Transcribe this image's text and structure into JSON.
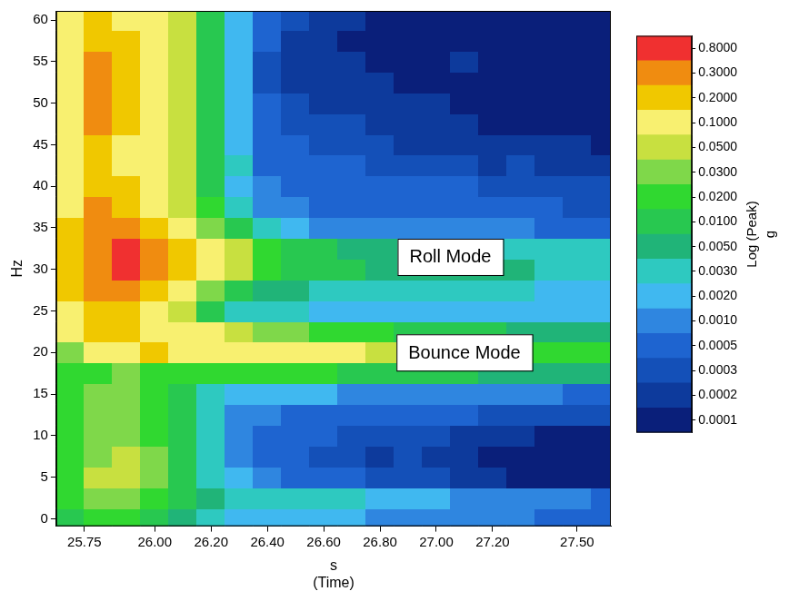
{
  "chart_data": {
    "type": "heatmap",
    "xlabel": [
      "s",
      "(Time)"
    ],
    "ylabel": "Hz",
    "xlim": [
      25.65,
      27.62
    ],
    "ylim": [
      -0.9,
      61.1
    ],
    "xticks": [
      25.75,
      {
        "value": 26,
        "label": "26.00"
      },
      {
        "value": 26.2,
        "label": "26.20"
      },
      {
        "value": 26.4,
        "label": "26.40"
      },
      {
        "value": 26.6,
        "label": "26.60"
      },
      {
        "value": 26.8,
        "label": "26.80"
      },
      {
        "value": 27,
        "label": "27.00"
      },
      {
        "value": 27.2,
        "label": "27.20"
      },
      {
        "value": 27.5,
        "label": "27.50"
      }
    ],
    "yticks": [
      0,
      5,
      10,
      15,
      20,
      25,
      30,
      35,
      40,
      45,
      50,
      55,
      60
    ],
    "grid": false,
    "x": [
      25.7,
      25.8,
      25.9,
      26.0,
      26.1,
      26.2,
      26.3,
      26.4,
      26.5,
      26.6,
      26.7,
      26.8,
      26.9,
      27.0,
      27.1,
      27.2,
      27.3,
      27.4,
      27.5,
      27.6
    ],
    "y": [
      0,
      2.5,
      5,
      7.5,
      10,
      12.5,
      15,
      17.5,
      20,
      22.5,
      25,
      27.5,
      30,
      32.5,
      35,
      37.5,
      40,
      42.5,
      45,
      47.5,
      50,
      52.5,
      55,
      57.5,
      60
    ],
    "z": [
      [
        0.01,
        0.02,
        0.02,
        0.01,
        0.005,
        0.003,
        0.002,
        0.002,
        0.002,
        0.002,
        0.002,
        0.001,
        0.001,
        0.001,
        0.001,
        0.001,
        0.001,
        0.0005,
        0.0005,
        0.0005
      ],
      [
        0.02,
        0.03,
        0.03,
        0.02,
        0.01,
        0.005,
        0.003,
        0.003,
        0.003,
        0.003,
        0.003,
        0.002,
        0.002,
        0.002,
        0.001,
        0.001,
        0.001,
        0.001,
        0.001,
        0.0005
      ],
      [
        0.02,
        0.05,
        0.05,
        0.03,
        0.01,
        0.003,
        0.002,
        0.001,
        0.0005,
        0.0005,
        0.0005,
        0.0003,
        0.0003,
        0.0003,
        0.0002,
        0.0002,
        0.0001,
        0.0001,
        0.0001,
        0.0001
      ],
      [
        0.02,
        0.03,
        0.05,
        0.03,
        0.01,
        0.003,
        0.001,
        0.0005,
        0.0005,
        0.0003,
        0.0003,
        0.0002,
        0.0003,
        0.0002,
        0.0002,
        0.0001,
        0.0001,
        0.0001,
        0.0001,
        0.0001
      ],
      [
        0.02,
        0.03,
        0.03,
        0.02,
        0.01,
        0.003,
        0.001,
        0.0005,
        0.0005,
        0.0005,
        0.0003,
        0.0003,
        0.0003,
        0.0003,
        0.0002,
        0.0002,
        0.0002,
        0.0001,
        0.0001,
        0.0001
      ],
      [
        0.02,
        0.03,
        0.03,
        0.02,
        0.01,
        0.003,
        0.001,
        0.001,
        0.0005,
        0.0005,
        0.0005,
        0.0005,
        0.0005,
        0.0005,
        0.0005,
        0.0003,
        0.0003,
        0.0003,
        0.0003,
        0.0003
      ],
      [
        0.02,
        0.03,
        0.03,
        0.02,
        0.01,
        0.003,
        0.002,
        0.002,
        0.002,
        0.002,
        0.001,
        0.001,
        0.001,
        0.001,
        0.001,
        0.001,
        0.001,
        0.001,
        0.0005,
        0.0005
      ],
      [
        0.02,
        0.02,
        0.03,
        0.02,
        0.02,
        0.02,
        0.02,
        0.02,
        0.02,
        0.02,
        0.01,
        0.01,
        0.01,
        0.01,
        0.01,
        0.005,
        0.005,
        0.005,
        0.005,
        0.005
      ],
      [
        0.03,
        0.1,
        0.15,
        0.2,
        0.15,
        0.1,
        0.1,
        0.1,
        0.1,
        0.1,
        0.1,
        0.05,
        0.05,
        0.05,
        0.03,
        0.03,
        0.02,
        0.02,
        0.02,
        0.02
      ],
      [
        0.15,
        0.2,
        0.2,
        0.15,
        0.1,
        0.1,
        0.05,
        0.03,
        0.03,
        0.02,
        0.02,
        0.02,
        0.01,
        0.01,
        0.01,
        0.01,
        0.005,
        0.005,
        0.005,
        0.005
      ],
      [
        0.15,
        0.2,
        0.2,
        0.1,
        0.05,
        0.01,
        0.003,
        0.003,
        0.003,
        0.002,
        0.002,
        0.002,
        0.002,
        0.002,
        0.002,
        0.002,
        0.002,
        0.002,
        0.002,
        0.002
      ],
      [
        0.2,
        0.3,
        0.3,
        0.2,
        0.1,
        0.03,
        0.01,
        0.005,
        0.005,
        0.003,
        0.003,
        0.003,
        0.003,
        0.003,
        0.003,
        0.003,
        0.003,
        0.002,
        0.002,
        0.002
      ],
      [
        0.2,
        0.5,
        0.8,
        0.3,
        0.2,
        0.1,
        0.05,
        0.02,
        0.01,
        0.01,
        0.01,
        0.005,
        0.005,
        0.005,
        0.005,
        0.005,
        0.005,
        0.003,
        0.003,
        0.003
      ],
      [
        0.2,
        0.5,
        0.8,
        0.3,
        0.2,
        0.1,
        0.05,
        0.02,
        0.01,
        0.01,
        0.005,
        0.005,
        0.005,
        0.005,
        0.005,
        0.003,
        0.003,
        0.003,
        0.003,
        0.003
      ],
      [
        0.2,
        0.3,
        0.3,
        0.2,
        0.1,
        0.03,
        0.01,
        0.003,
        0.002,
        0.001,
        0.001,
        0.001,
        0.001,
        0.001,
        0.001,
        0.001,
        0.001,
        0.0005,
        0.0005,
        0.0005
      ],
      [
        0.15,
        0.3,
        0.2,
        0.1,
        0.05,
        0.02,
        0.003,
        0.001,
        0.001,
        0.0005,
        0.0005,
        0.0005,
        0.0005,
        0.0005,
        0.0005,
        0.0005,
        0.0005,
        0.0005,
        0.0003,
        0.0003
      ],
      [
        0.15,
        0.2,
        0.2,
        0.1,
        0.05,
        0.01,
        0.002,
        0.001,
        0.0005,
        0.0005,
        0.0005,
        0.0005,
        0.0005,
        0.0005,
        0.0005,
        0.0003,
        0.0003,
        0.0003,
        0.0003,
        0.0003
      ],
      [
        0.15,
        0.2,
        0.15,
        0.1,
        0.05,
        0.01,
        0.003,
        0.0005,
        0.0005,
        0.0005,
        0.0005,
        0.0003,
        0.0003,
        0.0003,
        0.0003,
        0.0002,
        0.0003,
        0.0002,
        0.0002,
        0.0002
      ],
      [
        0.15,
        0.2,
        0.15,
        0.1,
        0.05,
        0.01,
        0.002,
        0.0005,
        0.0005,
        0.0003,
        0.0003,
        0.0003,
        0.0002,
        0.0002,
        0.0002,
        0.0002,
        0.0002,
        0.0002,
        0.0002,
        0.0001
      ],
      [
        0.15,
        0.3,
        0.2,
        0.1,
        0.05,
        0.01,
        0.002,
        0.0005,
        0.0003,
        0.0003,
        0.0003,
        0.0002,
        0.0002,
        0.0002,
        0.0002,
        0.0001,
        0.0001,
        0.0001,
        0.0001,
        0.0001
      ],
      [
        0.15,
        0.3,
        0.2,
        0.1,
        0.05,
        0.01,
        0.002,
        0.0005,
        0.0003,
        0.0002,
        0.0002,
        0.0002,
        0.0002,
        0.0002,
        0.0001,
        0.0001,
        0.0001,
        0.0001,
        0.0001,
        0.0001
      ],
      [
        0.15,
        0.3,
        0.2,
        0.1,
        0.05,
        0.01,
        0.002,
        0.0003,
        0.0002,
        0.0002,
        0.0002,
        0.0002,
        0.0001,
        0.0001,
        0.0001,
        0.0001,
        0.0001,
        0.0001,
        0.0001,
        0.0001
      ],
      [
        0.15,
        0.3,
        0.2,
        0.1,
        0.05,
        0.01,
        0.002,
        0.0003,
        0.0002,
        0.0002,
        0.0002,
        0.0001,
        0.0001,
        0.0001,
        0.0002,
        0.0001,
        0.0001,
        0.0001,
        0.0001,
        0.0001
      ],
      [
        0.15,
        0.2,
        0.2,
        0.1,
        0.05,
        0.01,
        0.002,
        0.0005,
        0.0002,
        0.0002,
        0.0001,
        0.0001,
        0.0001,
        0.0001,
        0.0001,
        0.0001,
        0.0001,
        0.0001,
        0.0001,
        0.0001
      ],
      [
        0.15,
        0.2,
        0.15,
        0.1,
        0.05,
        0.01,
        0.002,
        0.0005,
        0.0003,
        0.0002,
        0.0002,
        0.0001,
        0.0001,
        0.0001,
        0.0001,
        0.0001,
        0.0001,
        0.0001,
        0.0001,
        0.0001
      ]
    ],
    "colorbar": {
      "title": "Log (Peak)",
      "unit": "g",
      "ticks": [
        0.0001,
        0.0002,
        0.0003,
        0.0005,
        {
          "value": 0.001,
          "label": "0.0010"
        },
        {
          "value": 0.002,
          "label": "0.0020"
        },
        {
          "value": 0.003,
          "label": "0.0030"
        },
        {
          "value": 0.005,
          "label": "0.0050"
        },
        {
          "value": 0.01,
          "label": "0.0100"
        },
        {
          "value": 0.02,
          "label": "0.0200"
        },
        {
          "value": 0.03,
          "label": "0.0300"
        },
        {
          "value": 0.05,
          "label": "0.0500"
        },
        {
          "value": 0.1,
          "label": "0.1000"
        },
        {
          "value": 0.2,
          "label": "0.2000"
        },
        {
          "value": 0.3,
          "label": "0.3000"
        },
        {
          "value": 0.8,
          "label": "0.8000"
        }
      ],
      "colors": [
        "#0a1f7a",
        "#0d3a9c",
        "#1450b8",
        "#1e64d0",
        "#2f86e0",
        "#40b8f0",
        "#2ec9c0",
        "#20b478",
        "#28c850",
        "#30d830",
        "#7fd84a",
        "#c8e040",
        "#f8f070",
        "#f0c800",
        "#f08c10",
        "#f03030"
      ]
    },
    "annotations": [
      {
        "text": "Roll Mode",
        "x": 27.05,
        "y": 31.5
      },
      {
        "text": "Bounce Mode",
        "x": 27.1,
        "y": 20
      }
    ]
  }
}
